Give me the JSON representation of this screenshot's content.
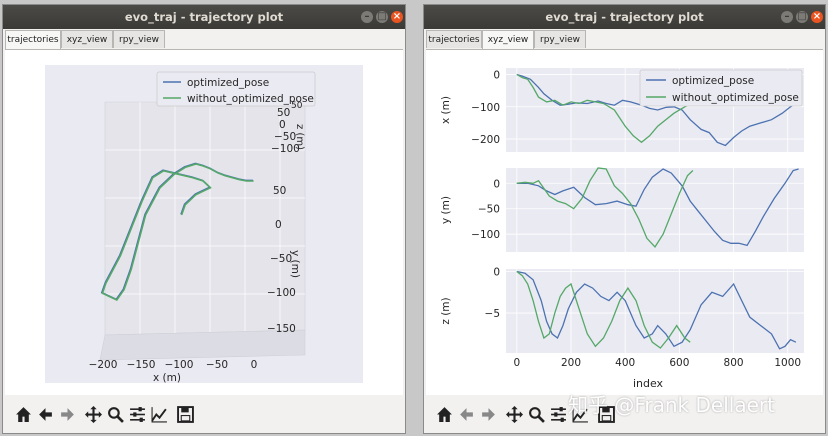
{
  "left_window": {
    "title": "evo_traj - trajectory plot",
    "tabs": [
      {
        "label": "trajectories",
        "active": true
      },
      {
        "label": "xyz_view",
        "active": false
      },
      {
        "label": "rpy_view",
        "active": false
      }
    ],
    "legend": [
      "optimized_pose",
      "without_optimized_pose"
    ],
    "x_axis_label": "x (m)",
    "y_axis_label": "y (m)",
    "z_axis_label": "z (m)",
    "x_ticks": [
      "−200",
      "−150",
      "−100",
      "−50",
      "0"
    ],
    "y_ticks": [
      "50",
      "0",
      "−50",
      "−100",
      "−150"
    ],
    "z_ticks": [
      "50",
      "0",
      "−50",
      "−100"
    ],
    "z_tick_partial": "50"
  },
  "right_window": {
    "title": "evo_traj - trajectory plot",
    "tabs": [
      {
        "label": "trajectories",
        "active": false
      },
      {
        "label": "xyz_view",
        "active": true
      },
      {
        "label": "rpy_view",
        "active": false
      }
    ],
    "legend": [
      "optimized_pose",
      "without_optimized_pose"
    ],
    "xlabel": "index"
  },
  "colors": {
    "optimized_pose": "#4c72b0",
    "without_optimized_pose": "#55a868",
    "plot_bg": "#eaeaf2",
    "titlebar": "#3c3b37"
  },
  "window_buttons": [
    "minimize-button",
    "maximize-button",
    "close-button"
  ],
  "toolbar_icons": [
    "home-icon",
    "back-icon",
    "forward-icon",
    "pan-icon",
    "zoom-icon",
    "configure-subplots-icon",
    "edit-axis-icon",
    "save-icon"
  ],
  "watermark": "知乎 @Frank Dellaert",
  "chart_data": [
    {
      "type": "line",
      "ylabel": "x (m)",
      "ylim": [
        -240,
        20
      ],
      "yticks": [
        0,
        -100,
        -200
      ],
      "xlim": [
        -40,
        1060
      ],
      "xticks": [
        0,
        200,
        400,
        600,
        800,
        1000
      ],
      "series": [
        {
          "name": "optimized_pose",
          "x": [
            0,
            20,
            50,
            80,
            100,
            130,
            160,
            190,
            220,
            260,
            300,
            330,
            360,
            390,
            420,
            460,
            490,
            520,
            550,
            580,
            610,
            640,
            680,
            710,
            740,
            770,
            800,
            830,
            860,
            900,
            940,
            980,
            1010,
            1040
          ],
          "y": [
            0,
            -5,
            -15,
            -40,
            -60,
            -80,
            -95,
            -92,
            -88,
            -90,
            -82,
            -90,
            -95,
            -80,
            -85,
            -95,
            -105,
            -110,
            -102,
            -100,
            -110,
            -140,
            -170,
            -180,
            -210,
            -220,
            -195,
            -175,
            -160,
            -150,
            -140,
            -120,
            -100,
            -85
          ]
        },
        {
          "name": "without_optimized_pose",
          "x": [
            0,
            20,
            40,
            60,
            80,
            110,
            140,
            170,
            200,
            230,
            260,
            290,
            320,
            360,
            400,
            430,
            460,
            490,
            520,
            550,
            580,
            620,
            660
          ],
          "y": [
            0,
            -10,
            -15,
            -40,
            -70,
            -85,
            -80,
            -95,
            -85,
            -90,
            -80,
            -85,
            -90,
            -110,
            -160,
            -190,
            -210,
            -190,
            -160,
            -140,
            -120,
            -100,
            -85
          ]
        }
      ]
    },
    {
      "type": "line",
      "ylabel": "y (m)",
      "ylim": [
        -135,
        30
      ],
      "yticks": [
        0,
        -50,
        -100
      ],
      "xlim": [
        -40,
        1060
      ],
      "xticks": [
        0,
        200,
        400,
        600,
        800,
        1000
      ],
      "series": [
        {
          "name": "optimized_pose",
          "x": [
            0,
            40,
            80,
            110,
            140,
            170,
            210,
            250,
            290,
            330,
            370,
            410,
            440,
            470,
            500,
            540,
            570,
            610,
            640,
            670,
            700,
            730,
            760,
            790,
            820,
            850,
            880,
            910,
            950,
            990,
            1020,
            1040
          ],
          "y": [
            0,
            0,
            -5,
            -15,
            -22,
            -15,
            -8,
            -28,
            -42,
            -40,
            -35,
            -42,
            -45,
            -12,
            12,
            28,
            20,
            -5,
            -35,
            -55,
            -75,
            -95,
            -112,
            -118,
            -118,
            -122,
            -95,
            -65,
            -30,
            0,
            25,
            28
          ]
        },
        {
          "name": "without_optimized_pose",
          "x": [
            0,
            30,
            60,
            80,
            100,
            120,
            150,
            180,
            210,
            240,
            270,
            300,
            330,
            360,
            390,
            420,
            450,
            480,
            510,
            540,
            570,
            600,
            630,
            650
          ],
          "y": [
            0,
            2,
            0,
            5,
            -10,
            -25,
            -35,
            -40,
            -50,
            -30,
            5,
            30,
            28,
            -5,
            -20,
            -40,
            -70,
            -108,
            -125,
            -100,
            -60,
            -20,
            15,
            25
          ]
        }
      ]
    },
    {
      "type": "line",
      "ylabel": "z (m)",
      "ylim": [
        -9.8,
        0.3
      ],
      "yticks": [
        0,
        -5
      ],
      "xlim": [
        -40,
        1060
      ],
      "xticks": [
        0,
        200,
        400,
        600,
        800,
        1000
      ],
      "xlabel": "index",
      "series": [
        {
          "name": "optimized_pose",
          "x": [
            0,
            30,
            60,
            90,
            110,
            130,
            150,
            170,
            190,
            220,
            250,
            280,
            310,
            340,
            370,
            400,
            420,
            440,
            470,
            500,
            520,
            550,
            580,
            610,
            640,
            680,
            720,
            760,
            800,
            830,
            860,
            900,
            940,
            970,
            990,
            1010,
            1030
          ],
          "y": [
            0,
            -0.2,
            -1.0,
            -3.5,
            -6.0,
            -7.5,
            -8.0,
            -6.5,
            -4.5,
            -2.5,
            -1.5,
            -2.0,
            -3.0,
            -3.5,
            -2.5,
            -3.5,
            -5.0,
            -6.5,
            -8.0,
            -7.5,
            -6.5,
            -7.5,
            -9.0,
            -8.5,
            -7.0,
            -4.0,
            -2.5,
            -3.0,
            -1.5,
            -3.5,
            -5.5,
            -6.5,
            -7.5,
            -9.3,
            -9.0,
            -8.2,
            -8.5
          ]
        },
        {
          "name": "without_optimized_pose",
          "x": [
            0,
            20,
            40,
            60,
            80,
            100,
            120,
            140,
            160,
            180,
            200,
            230,
            260,
            290,
            320,
            350,
            380,
            410,
            440,
            470,
            500,
            530,
            560,
            590,
            620,
            640
          ],
          "y": [
            0,
            -0.5,
            -1.5,
            -3.5,
            -6.0,
            -8.0,
            -7.5,
            -5.0,
            -3.0,
            -2.0,
            -1.5,
            -4.5,
            -7.5,
            -9.0,
            -8.0,
            -6.0,
            -3.5,
            -2.0,
            -3.5,
            -6.5,
            -8.5,
            -9.2,
            -8.0,
            -6.5,
            -8.0,
            -8.5
          ]
        }
      ]
    }
  ],
  "trajectory_3d": {
    "series": [
      {
        "name": "optimized_pose",
        "x": [
          -100,
          -95,
          -90,
          -80,
          -70,
          -60,
          -70,
          -85,
          -105,
          -125,
          -140,
          -155,
          -170,
          -185,
          -200,
          -205,
          -210,
          -200,
          -190,
          -180,
          -170,
          -160,
          -150,
          -140,
          -130,
          -120,
          -110,
          -95,
          -80,
          -70,
          -60,
          -50,
          -40,
          -30,
          -20,
          -10,
          0
        ],
        "y": [
          20,
          35,
          40,
          50,
          55,
          60,
          70,
          75,
          80,
          85,
          75,
          40,
          0,
          -40,
          -70,
          -80,
          -95,
          -100,
          -105,
          -90,
          -60,
          -20,
          20,
          40,
          60,
          70,
          80,
          90,
          95,
          92,
          88,
          82,
          78,
          75,
          72,
          70,
          70
        ]
      },
      {
        "name": "without_optimized_pose",
        "x": [
          -100,
          -95,
          -90,
          -80,
          -70,
          -60,
          -70,
          -85,
          -105,
          -125,
          -140,
          -155,
          -170,
          -185,
          -200,
          -205,
          -210,
          -200,
          -190,
          -180,
          -170,
          -160,
          -150,
          -140,
          -130,
          -120,
          -110,
          -95,
          -80,
          -70,
          -60,
          -50,
          -40,
          -30,
          -20,
          -10,
          0
        ],
        "y": [
          20,
          35,
          40,
          50,
          55,
          60,
          70,
          75,
          80,
          85,
          75,
          40,
          0,
          -40,
          -70,
          -80,
          -95,
          -100,
          -105,
          -90,
          -60,
          -20,
          20,
          40,
          60,
          70,
          80,
          90,
          95,
          92,
          88,
          82,
          78,
          75,
          72,
          70,
          70
        ]
      }
    ]
  }
}
